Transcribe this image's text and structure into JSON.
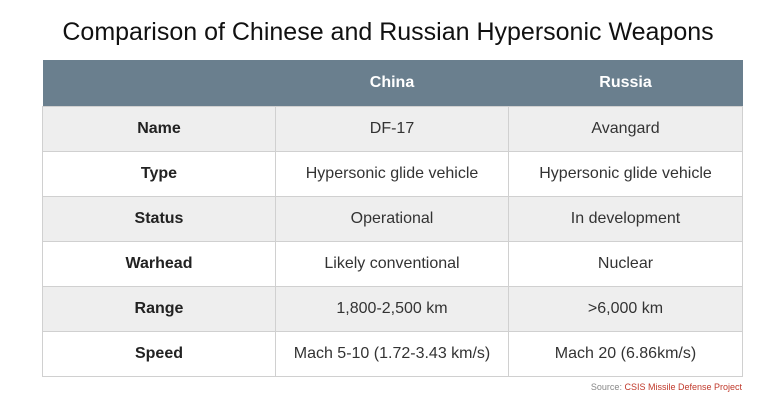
{
  "title": "Comparison of Chinese and Russian Hypersonic Weapons",
  "table": {
    "columns": [
      "",
      "China",
      "Russia"
    ],
    "rows": [
      {
        "label": "Name",
        "china": "DF-17",
        "russia": "Avangard"
      },
      {
        "label": "Type",
        "china": "Hypersonic glide vehicle",
        "russia": "Hypersonic glide vehicle"
      },
      {
        "label": "Status",
        "china": "Operational",
        "russia": "In development"
      },
      {
        "label": "Warhead",
        "china": "Likely conventional",
        "russia": "Nuclear"
      },
      {
        "label": "Range",
        "china": "1,800-2,500 km",
        "russia": ">6,000 km"
      },
      {
        "label": "Speed",
        "china": "Mach 5-10 (1.72-3.43 km/s)",
        "russia": "Mach 20 (6.86km/s)"
      }
    ]
  },
  "source": {
    "prefix": "Source: ",
    "name": "CSIS Missile Defense Project"
  },
  "colors": {
    "header_background": "#6a7f8e",
    "header_text": "#ffffff",
    "row_stripe": "#eeeeee",
    "source_link": "#c0392b"
  }
}
